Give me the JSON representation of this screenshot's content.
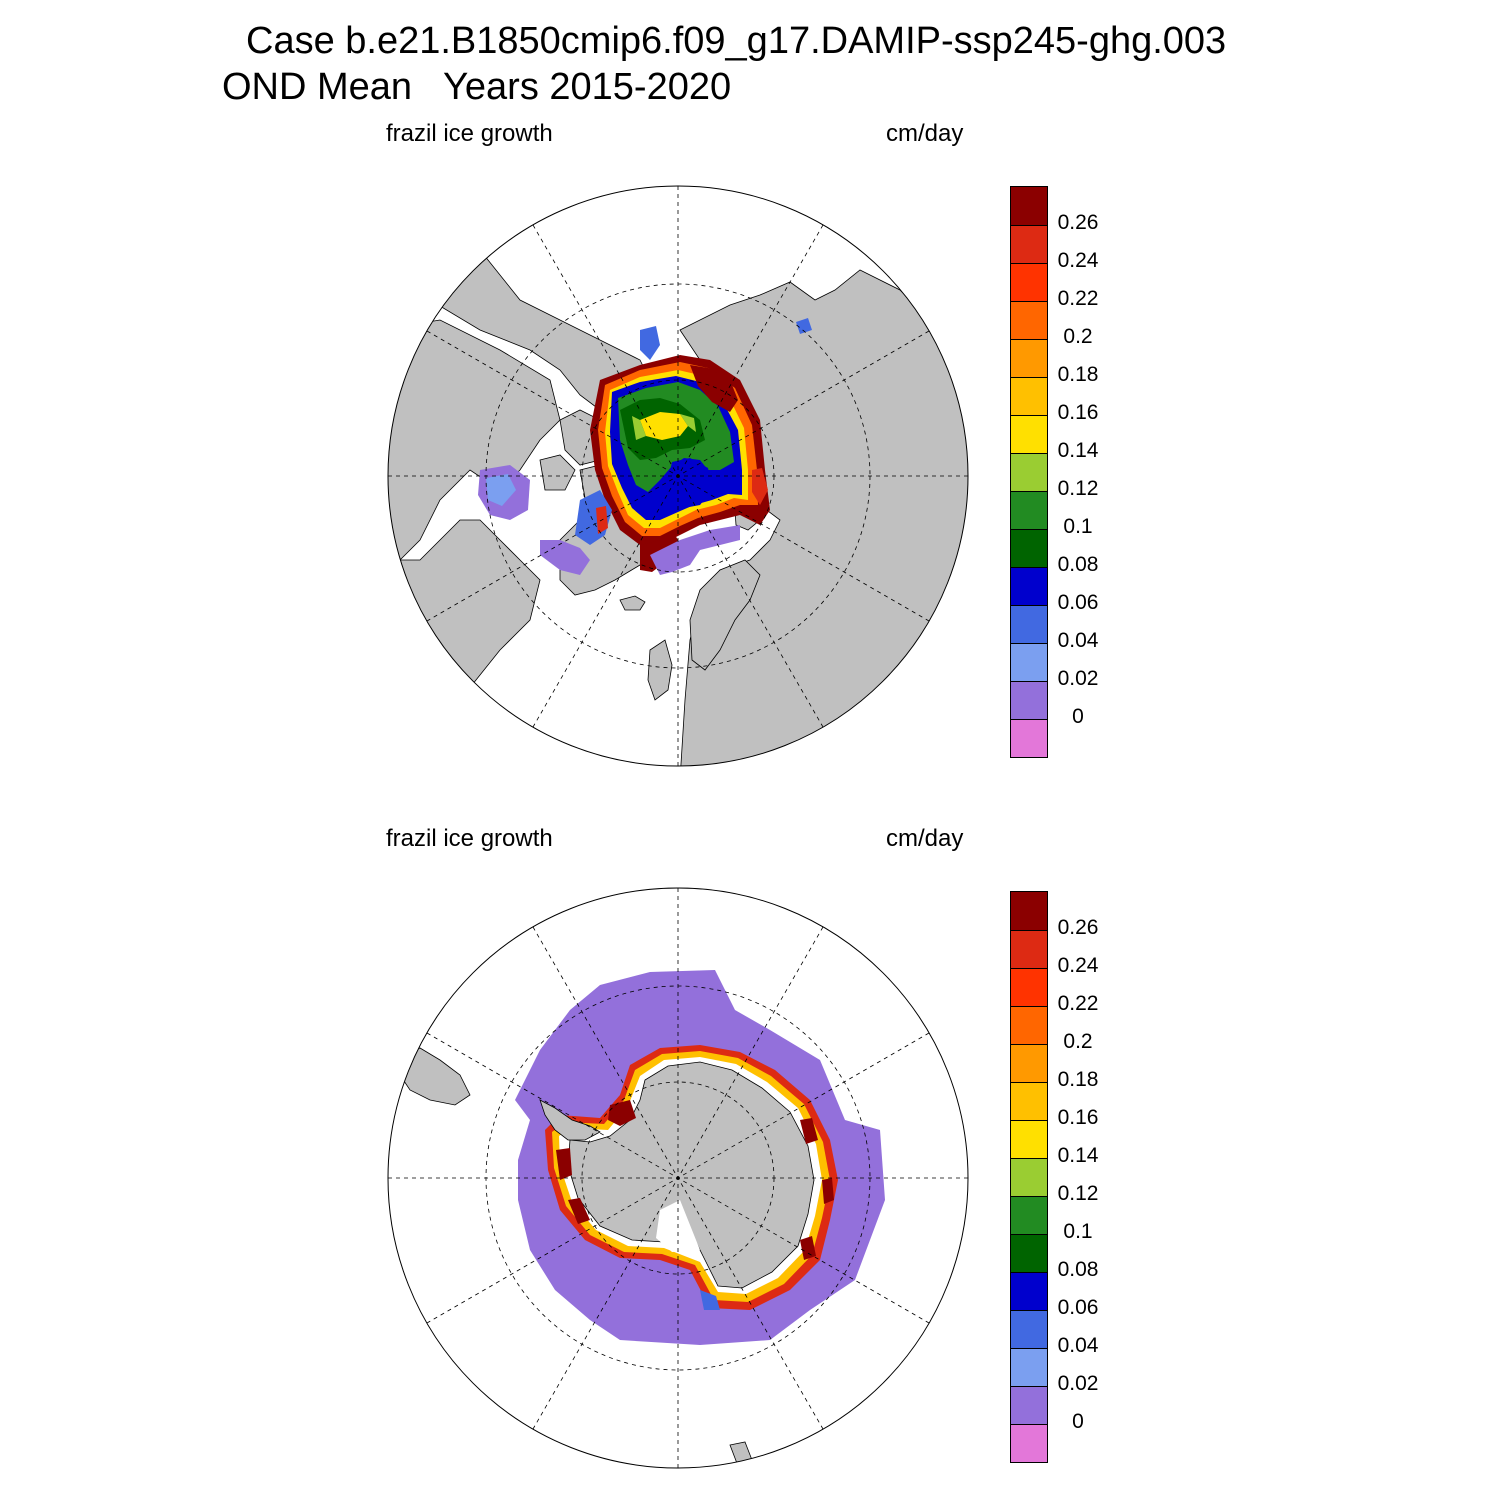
{
  "title": {
    "line1": "Case b.e21.B1850cmip6.f09_g17.DAMIP-ssp245-ghg.003",
    "line2": "OND Mean   Years 2015-2020"
  },
  "panels": [
    {
      "hemisphere": "north",
      "left_label": "frazil ice growth",
      "right_label": "cm/day"
    },
    {
      "hemisphere": "south",
      "left_label": "frazil ice growth",
      "right_label": "cm/day"
    }
  ],
  "colorbar": {
    "colors": [
      "#e377d9",
      "#9370db",
      "#7b9ff0",
      "#4169e1",
      "#0000cd",
      "#006400",
      "#228b22",
      "#9acd32",
      "#ffe000",
      "#ffc000",
      "#ff9900",
      "#ff6600",
      "#ff3300",
      "#dd2a13",
      "#8b0000"
    ],
    "tick_labels": [
      "0",
      "0.02",
      "0.04",
      "0.06",
      "0.08",
      "0.1",
      "0.12",
      "0.14",
      "0.16",
      "0.18",
      "0.2",
      "0.22",
      "0.24",
      "0.26"
    ]
  },
  "colors": {
    "land": "#c0c0c0",
    "ocean": "#ffffff",
    "grid": "#000000"
  }
}
